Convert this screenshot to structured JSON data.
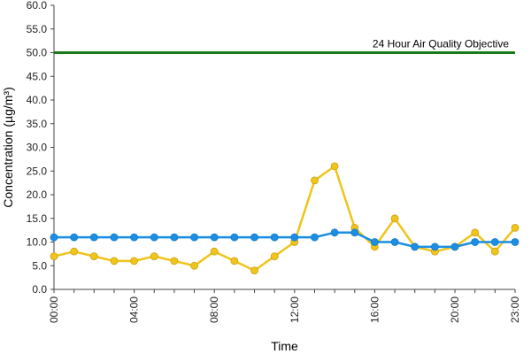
{
  "chart_data": {
    "type": "line",
    "xlabel": "Time",
    "ylabel": "Concentration (µg/m³)",
    "ylim": [
      0,
      60
    ],
    "y_ticks": [
      "0.0",
      "5.0",
      "10.0",
      "15.0",
      "20.0",
      "25.0",
      "30.0",
      "35.0",
      "40.0",
      "45.0",
      "50.0",
      "55.0",
      "60.0"
    ],
    "x": [
      "00:00",
      "01:00",
      "02:00",
      "03:00",
      "04:00",
      "05:00",
      "06:00",
      "07:00",
      "08:00",
      "09:00",
      "10:00",
      "11:00",
      "12:00",
      "13:00",
      "14:00",
      "15:00",
      "16:00",
      "17:00",
      "18:00",
      "19:00",
      "20:00",
      "21:00",
      "22:00",
      "23:00"
    ],
    "x_tick_labels": [
      "00:00",
      "04:00",
      "08:00",
      "12:00",
      "16:00",
      "20:00",
      "23:00"
    ],
    "series": [
      {
        "color": "#f0c419",
        "values": [
          7,
          8,
          7,
          6,
          6,
          7,
          6,
          5,
          8,
          6,
          4,
          7,
          10,
          23,
          26,
          13,
          9,
          15,
          9,
          8,
          9,
          12,
          8,
          13
        ]
      },
      {
        "color": "#1a8fe3",
        "values": [
          11,
          11,
          11,
          11,
          11,
          11,
          11,
          11,
          11,
          11,
          11,
          11,
          11,
          11,
          12,
          12,
          10,
          10,
          9,
          9,
          9,
          10,
          10,
          10
        ]
      }
    ],
    "reference_line": {
      "label": "24 Hour Air Quality Objective",
      "value": 50,
      "color": "#1a7a1a"
    },
    "grid": false,
    "legend": "none"
  }
}
